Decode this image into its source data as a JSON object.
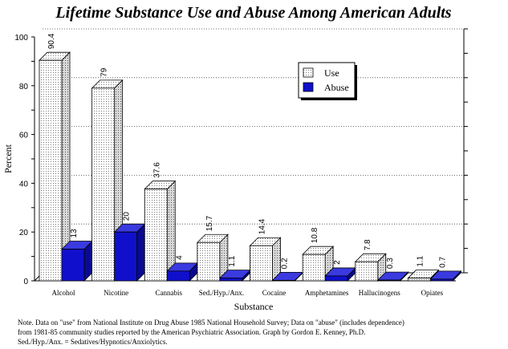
{
  "chart_data": {
    "type": "bar",
    "title": "Lifetime Substance Use and Abuse Among American Adults",
    "xlabel": "Substance",
    "ylabel": "Percent",
    "ylim": [
      0,
      100
    ],
    "yticks": [
      "0",
      "20",
      "40",
      "60",
      "80",
      "100"
    ],
    "grid": true,
    "legend_position": "top-right",
    "categories": [
      "Alcohol",
      "Nicotine",
      "Cannabis",
      "Sed./Hyp./Anx.",
      "Cocaine",
      "Amphetamines",
      "Hallucinogens",
      "Opiates"
    ],
    "series": [
      {
        "name": "Use",
        "values": [
          90.4,
          79,
          37.6,
          15.7,
          14.4,
          10.8,
          7.8,
          1.1
        ],
        "labels": [
          "90.4",
          "79",
          "37.6",
          "15.7",
          "14.4",
          "10.8",
          "7.8",
          "1.1"
        ],
        "fill": "dotted-white"
      },
      {
        "name": "Abuse",
        "values": [
          13,
          20,
          4,
          1.1,
          0.2,
          2,
          0.3,
          0.7
        ],
        "labels": [
          "13",
          "20",
          "4",
          "1.1",
          "0.2",
          "2",
          "0.3",
          "0.7"
        ],
        "color": "#1010cc"
      }
    ]
  },
  "note": {
    "line1": "Note.  Data on \"use\" from National Institute on Drug Abuse 1985 National Household Survey; Data on \"abuse\" (includes dependence)",
    "line2": "from 1981-85 community studies reported by the American Psychiatric Association.  Graph by Gordon E. Kenney, Ph.D.",
    "line3": "Sed./Hyp./Anx. = Sedatives/Hypnotics/Anxiolytics."
  }
}
